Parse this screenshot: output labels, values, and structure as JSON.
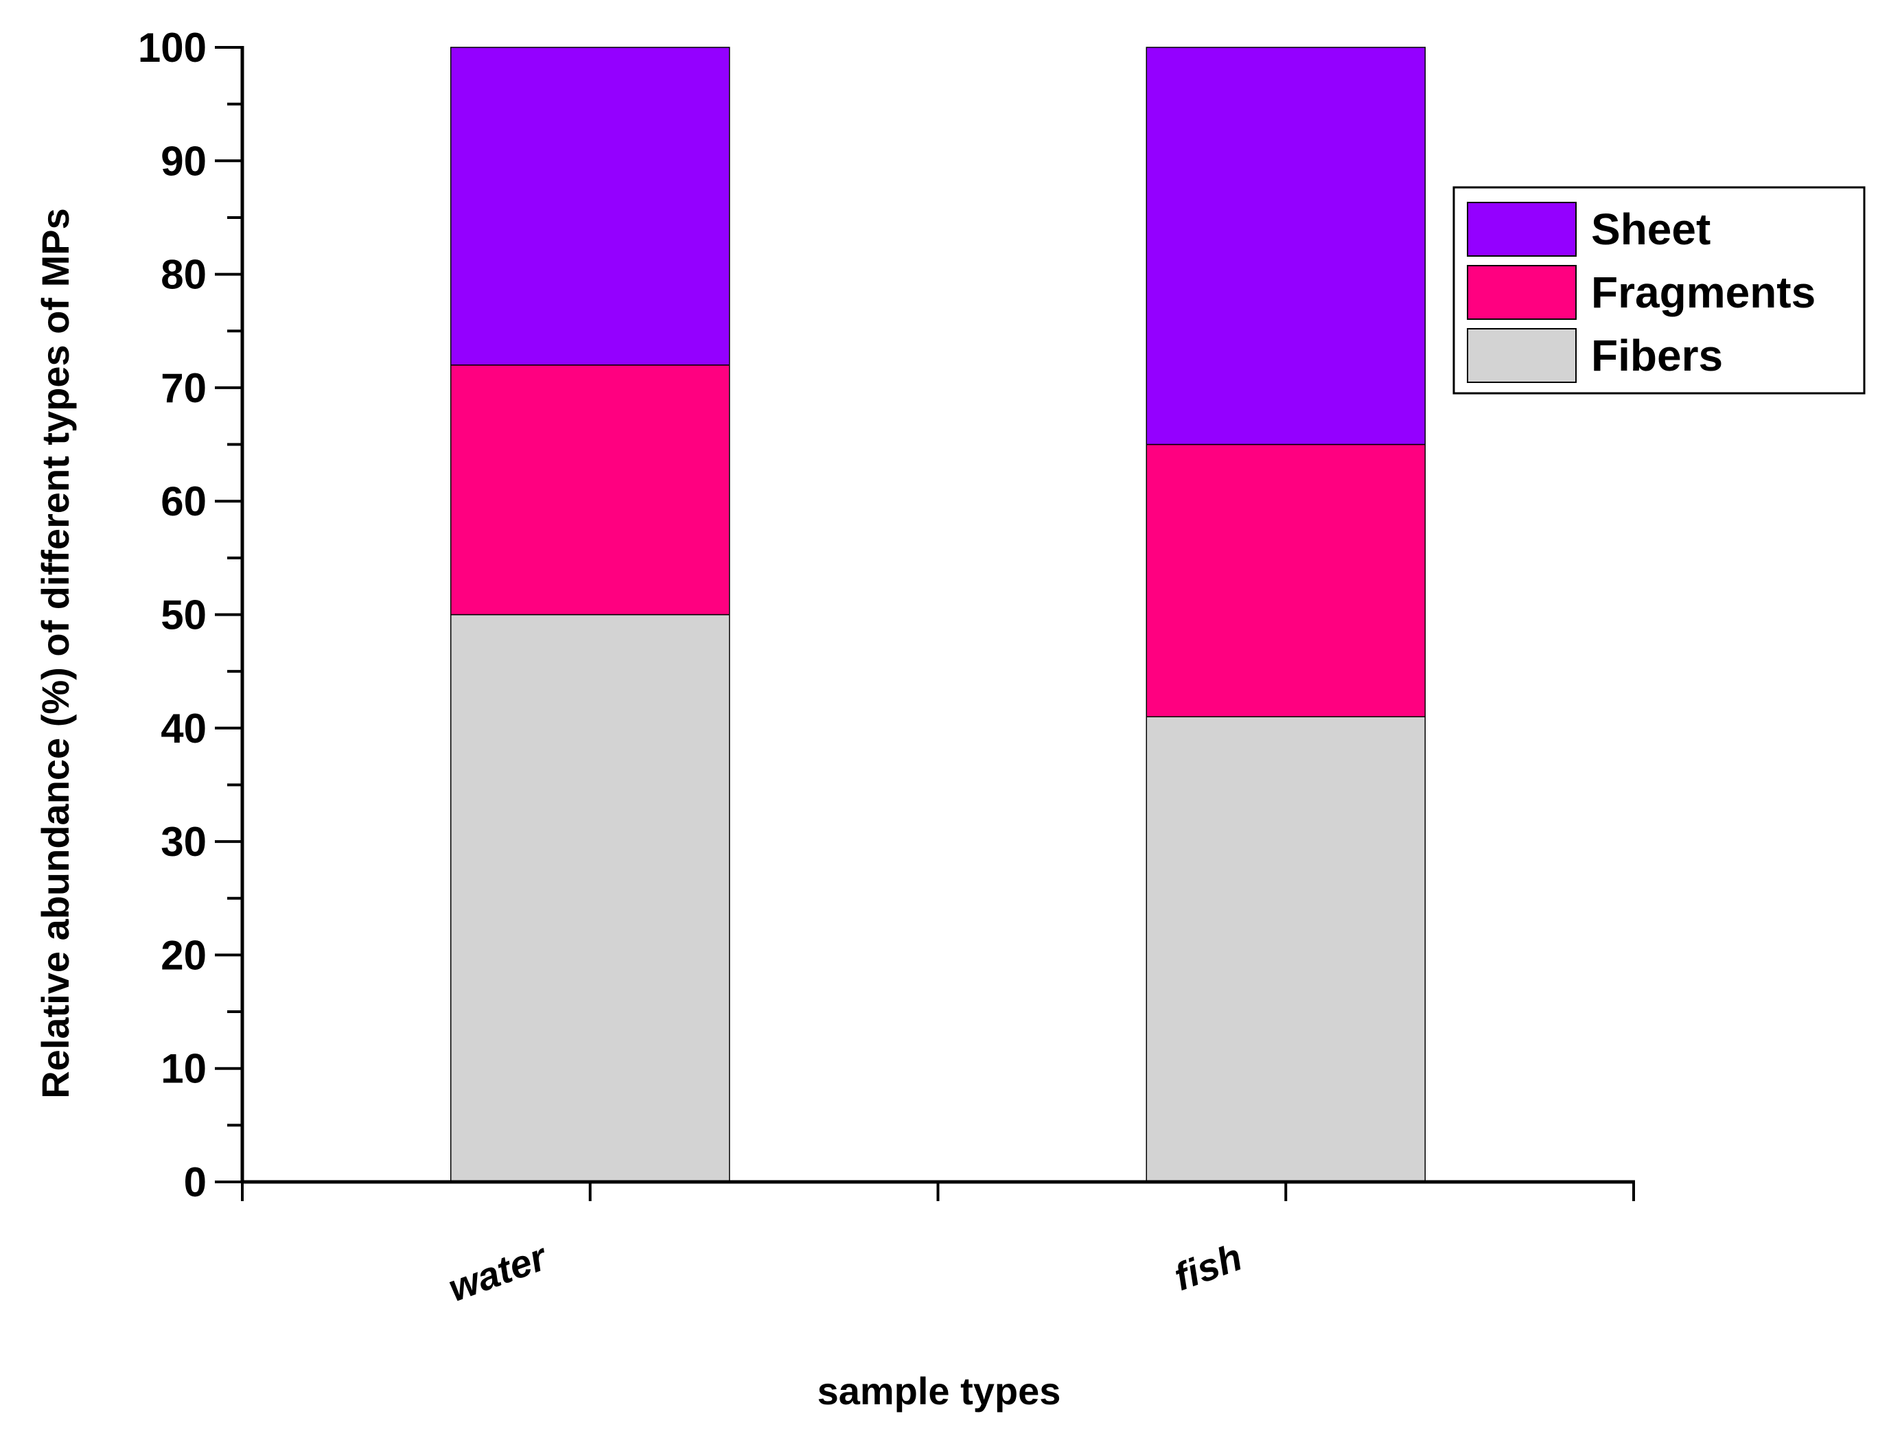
{
  "chart_data": {
    "type": "bar",
    "stacked": true,
    "categories": [
      "water",
      "fish"
    ],
    "series": [
      {
        "name": "Fibers",
        "color": "#d3d3d3",
        "values": [
          50,
          41
        ]
      },
      {
        "name": "Fragments",
        "color": "#ff0080",
        "values": [
          22,
          24
        ]
      },
      {
        "name": "Sheet",
        "color": "#9400ff",
        "values": [
          28,
          35
        ]
      }
    ],
    "legend_order": [
      "Sheet",
      "Fragments",
      "Fibers"
    ],
    "legend_position": "top-right",
    "xlabel": "sample types",
    "ylabel": "Relative abundance (%) of different types of MPs",
    "ylim": [
      0,
      100
    ],
    "yticks": [
      0,
      10,
      20,
      30,
      40,
      50,
      60,
      70,
      80,
      90,
      100
    ],
    "grid": false
  }
}
